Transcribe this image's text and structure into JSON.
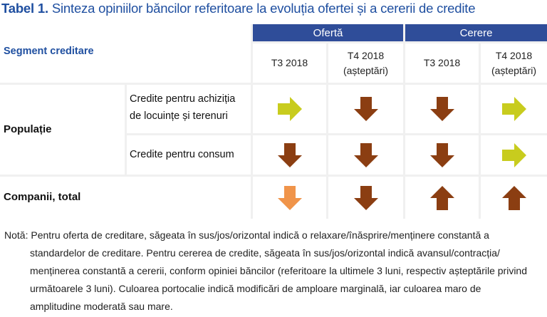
{
  "title": {
    "number": "Tabel 1.",
    "text": "Sinteza opiniilor băncilor referitoare la evoluția ofertei și a cererii de credite"
  },
  "header": {
    "segment_label": "Segment creditare",
    "groups": [
      "Ofertă",
      "Cerere"
    ],
    "periods": [
      {
        "line1": "T3 2018",
        "line2": ""
      },
      {
        "line1": "T4 2018",
        "line2": "(așteptări)"
      },
      {
        "line1": "T3 2018",
        "line2": ""
      },
      {
        "line1": "T4 2018",
        "line2": "(așteptări)"
      }
    ]
  },
  "rows": [
    {
      "group": "Populație",
      "sub": "Credite pentru achiziția de locuințe și terenuri",
      "sub_line1": "Credite pentru achiziția",
      "sub_line2": "de locuințe și terenuri",
      "arrows": [
        {
          "dir": "right",
          "color": "#c8cc1e"
        },
        {
          "dir": "down",
          "color": "#8b3e12"
        },
        {
          "dir": "down",
          "color": "#8b3e12"
        },
        {
          "dir": "right",
          "color": "#c8cc1e"
        }
      ]
    },
    {
      "group": "",
      "sub": "Credite pentru consum",
      "arrows": [
        {
          "dir": "down",
          "color": "#8b3e12"
        },
        {
          "dir": "down",
          "color": "#8b3e12"
        },
        {
          "dir": "down",
          "color": "#8b3e12"
        },
        {
          "dir": "right",
          "color": "#c8cc1e"
        }
      ]
    },
    {
      "group": "Companii, total",
      "sub": "",
      "arrows": [
        {
          "dir": "down",
          "color": "#f0944a"
        },
        {
          "dir": "down",
          "color": "#8b3e12"
        },
        {
          "dir": "up",
          "color": "#8b3e12"
        },
        {
          "dir": "up",
          "color": "#8b3e12"
        }
      ]
    }
  ],
  "row_labels": {
    "populatie": "Populație"
  },
  "note": {
    "prefix": "Notă:",
    "line1": "Pentru oferta de creditare, săgeata în sus/jos/orizontal indică o relaxare/înăsprire/menținere constantă a",
    "line2": "standardelor de creditare. Pentru cererea de credite, săgeata în sus/jos/orizontal indică avansul/contracția/",
    "line3": "menținerea constantă a cererii, conform opiniei băncilor (referitoare la ultimele 3 luni, respectiv așteptările privind",
    "line4": "următoarele 3 luni). Culoarea portocalie indică modificări de amploare marginală, iar culoarea maro de",
    "line5": "amplitudine moderată sau mare."
  }
}
